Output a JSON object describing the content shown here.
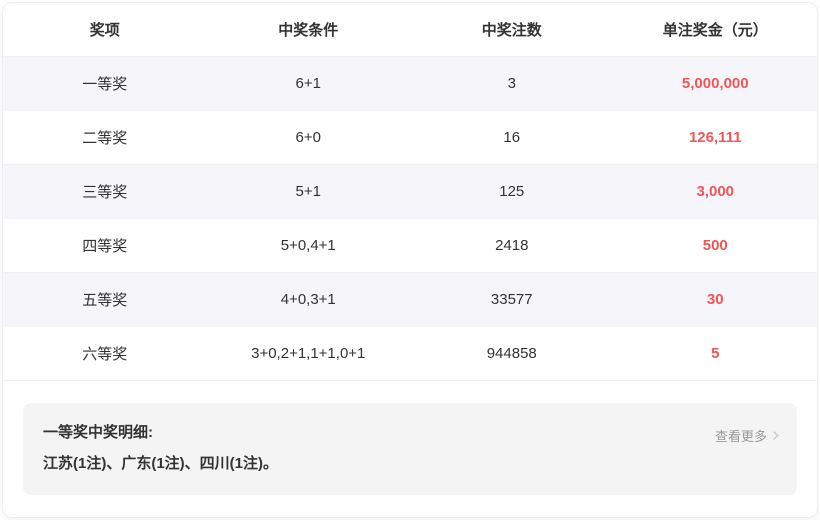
{
  "table": {
    "headers": [
      "奖项",
      "中奖条件",
      "中奖注数",
      "单注奖金（元）"
    ],
    "rows": [
      {
        "prize": "一等奖",
        "condition": "6+1",
        "count": "3",
        "amount": "5,000,000"
      },
      {
        "prize": "二等奖",
        "condition": "6+0",
        "count": "16",
        "amount": "126,111"
      },
      {
        "prize": "三等奖",
        "condition": "5+1",
        "count": "125",
        "amount": "3,000"
      },
      {
        "prize": "四等奖",
        "condition": "5+0,4+1",
        "count": "2418",
        "amount": "500"
      },
      {
        "prize": "五等奖",
        "condition": "4+0,3+1",
        "count": "33577",
        "amount": "30"
      },
      {
        "prize": "六等奖",
        "condition": "3+0,2+1,1+1,0+1",
        "count": "944858",
        "amount": "5"
      }
    ]
  },
  "footer": {
    "title": "一等奖中奖明细:",
    "detail": "江苏(1注)、广东(1注)、四川(1注)。",
    "more_label": "查看更多"
  },
  "colors": {
    "accent_red": "#f25555",
    "stripe_row": "#f5f5fa",
    "footer_box": "#f4f4f4",
    "text_main": "#333333",
    "text_muted": "#999999"
  }
}
